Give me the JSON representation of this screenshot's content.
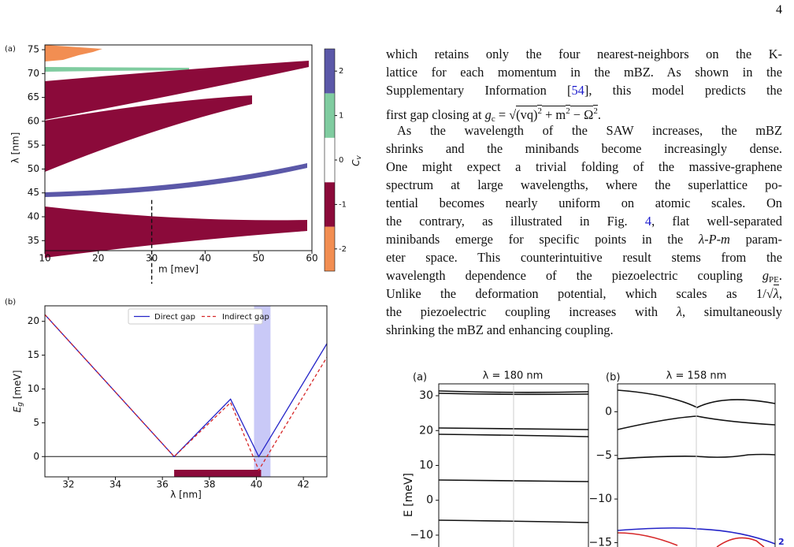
{
  "page_number": "4",
  "figure_top": {
    "panel_a": {
      "label": "(a)",
      "xlabel": "m [mev]",
      "ylabel": "λ [nm]",
      "xlim": [
        10,
        60
      ],
      "xticks": [
        10,
        20,
        30,
        40,
        50,
        60
      ],
      "ylim": [
        32.9,
        76
      ],
      "yticks": [
        35,
        40,
        45,
        50,
        55,
        60,
        65,
        70,
        75
      ],
      "marker_x": 30,
      "colorbar": {
        "label": "C",
        "label_sub": "v",
        "lim": [
          -2.5,
          2.5
        ],
        "ticks": [
          -2,
          -1,
          0,
          1,
          2
        ],
        "colors": [
          "#f28e52",
          "#8b0a3a",
          "#ffffff",
          "#80cca0",
          "#5b58a8"
        ]
      }
    },
    "panel_b": {
      "label": "(b)",
      "xlabel": "λ [nm]",
      "ylabel": "E",
      "ylabel_sub": "g",
      "ylabel_unit": " [meV]",
      "xlim": [
        31,
        43
      ],
      "xticks": [
        32,
        34,
        36,
        38,
        40,
        42
      ],
      "ylim": [
        -3,
        22.3
      ],
      "yticks": [
        0,
        5,
        10,
        15,
        20
      ],
      "highlight_band": [
        39.9,
        40.6
      ],
      "gap_bar": [
        36.5,
        40.2
      ],
      "series": [
        {
          "name": "Direct gap",
          "color": "#2424c8",
          "dash": false,
          "x": [
            31,
            36.5,
            38.9,
            40.1,
            43
          ],
          "values": [
            21,
            0,
            8.5,
            0,
            16.7
          ]
        },
        {
          "name": "Indirect gap",
          "color": "#d62728",
          "dash": true,
          "x": [
            31,
            36.5,
            38.9,
            40.1,
            43
          ],
          "values": [
            21,
            0,
            8.0,
            -2,
            14.7
          ]
        }
      ]
    }
  },
  "text": {
    "paragraphs": [
      {
        "lines": [
          [
            {
              "t": "which retains only the four nearest-neighbors on the K-"
            }
          ],
          [
            {
              "t": "lattice for each momentum in the mBZ. As shown in the"
            }
          ],
          [
            {
              "t": "Supplementary Information ["
            },
            {
              "t": "54",
              "style": "link"
            },
            {
              "t": "], this model predicts the"
            }
          ],
          [
            {
              "t": "first gap closing at "
            },
            {
              "t": "g",
              "style": "i"
            },
            {
              "t": "c",
              "style": "sub"
            },
            {
              "t": " = √"
            },
            {
              "t": "(vq)",
              "style": "root"
            },
            {
              "t": "2",
              "style": "root sup"
            },
            {
              "t": " + m",
              "style": "root"
            },
            {
              "t": "2",
              "style": "root sup"
            },
            {
              "t": " − Ω",
              "style": "root"
            },
            {
              "t": "2",
              "style": "root sup"
            },
            {
              "t": "."
            }
          ]
        ]
      },
      {
        "lines": [
          [
            {
              "t": "As the wavelength of the SAW increases, the mBZ"
            }
          ],
          [
            {
              "t": "shrinks and the minibands become increasingly dense."
            }
          ],
          [
            {
              "t": "One might expect a trivial folding of the massive-graphene"
            }
          ],
          [
            {
              "t": "spectrum at large wavelengths, where the superlattice po-"
            }
          ],
          [
            {
              "t": "tential becomes nearly uniform on atomic scales. On"
            }
          ],
          [
            {
              "t": "the contrary, as illustrated in Fig. "
            },
            {
              "t": "4",
              "style": "link"
            },
            {
              "t": ", flat well-separated"
            }
          ],
          [
            {
              "t": "minibands emerge for specific points in the "
            },
            {
              "t": "λ-P-m",
              "style": "i"
            },
            {
              "t": " param-"
            }
          ],
          [
            {
              "t": "eter space. This counterintuitive result stems from the"
            }
          ],
          [
            {
              "t": "wavelength dependence of the piezoelectric coupling "
            },
            {
              "t": "g",
              "style": "i"
            },
            {
              "t": "PE",
              "style": "sub"
            },
            {
              "t": "."
            }
          ],
          [
            {
              "t": "Unlike the deformation potential, which scales as 1/√"
            },
            {
              "t": "λ",
              "style": "root i"
            },
            {
              "t": ","
            }
          ],
          [
            {
              "t": "the piezoelectric coupling increases with "
            },
            {
              "t": "λ",
              "style": "i"
            },
            {
              "t": ", simultaneously"
            }
          ],
          [
            {
              "t": "shrinking the mBZ and enhancing coupling."
            }
          ]
        ]
      }
    ]
  },
  "figure_bottom": {
    "panel_a": {
      "label": "(a)",
      "title": "λ = 180 nm",
      "ylabel": "E [meV]",
      "ylim": [
        -13.4,
        33.4
      ],
      "yticks": [
        {
          "value": 30,
          "label": "30"
        },
        20,
        10,
        0,
        {
          "value": -10,
          "label": "−10"
        }
      ]
    },
    "panel_b": {
      "label": "(b)",
      "title": "λ = 158 nm",
      "ylim": [
        -15.5,
        3.2
      ],
      "yticks": [
        0,
        {
          "value": -5,
          "label": "−5"
        },
        {
          "value": -10,
          "label": "−10"
        },
        {
          "value": -15,
          "label": "−15"
        }
      ],
      "band_label": "2"
    }
  }
}
